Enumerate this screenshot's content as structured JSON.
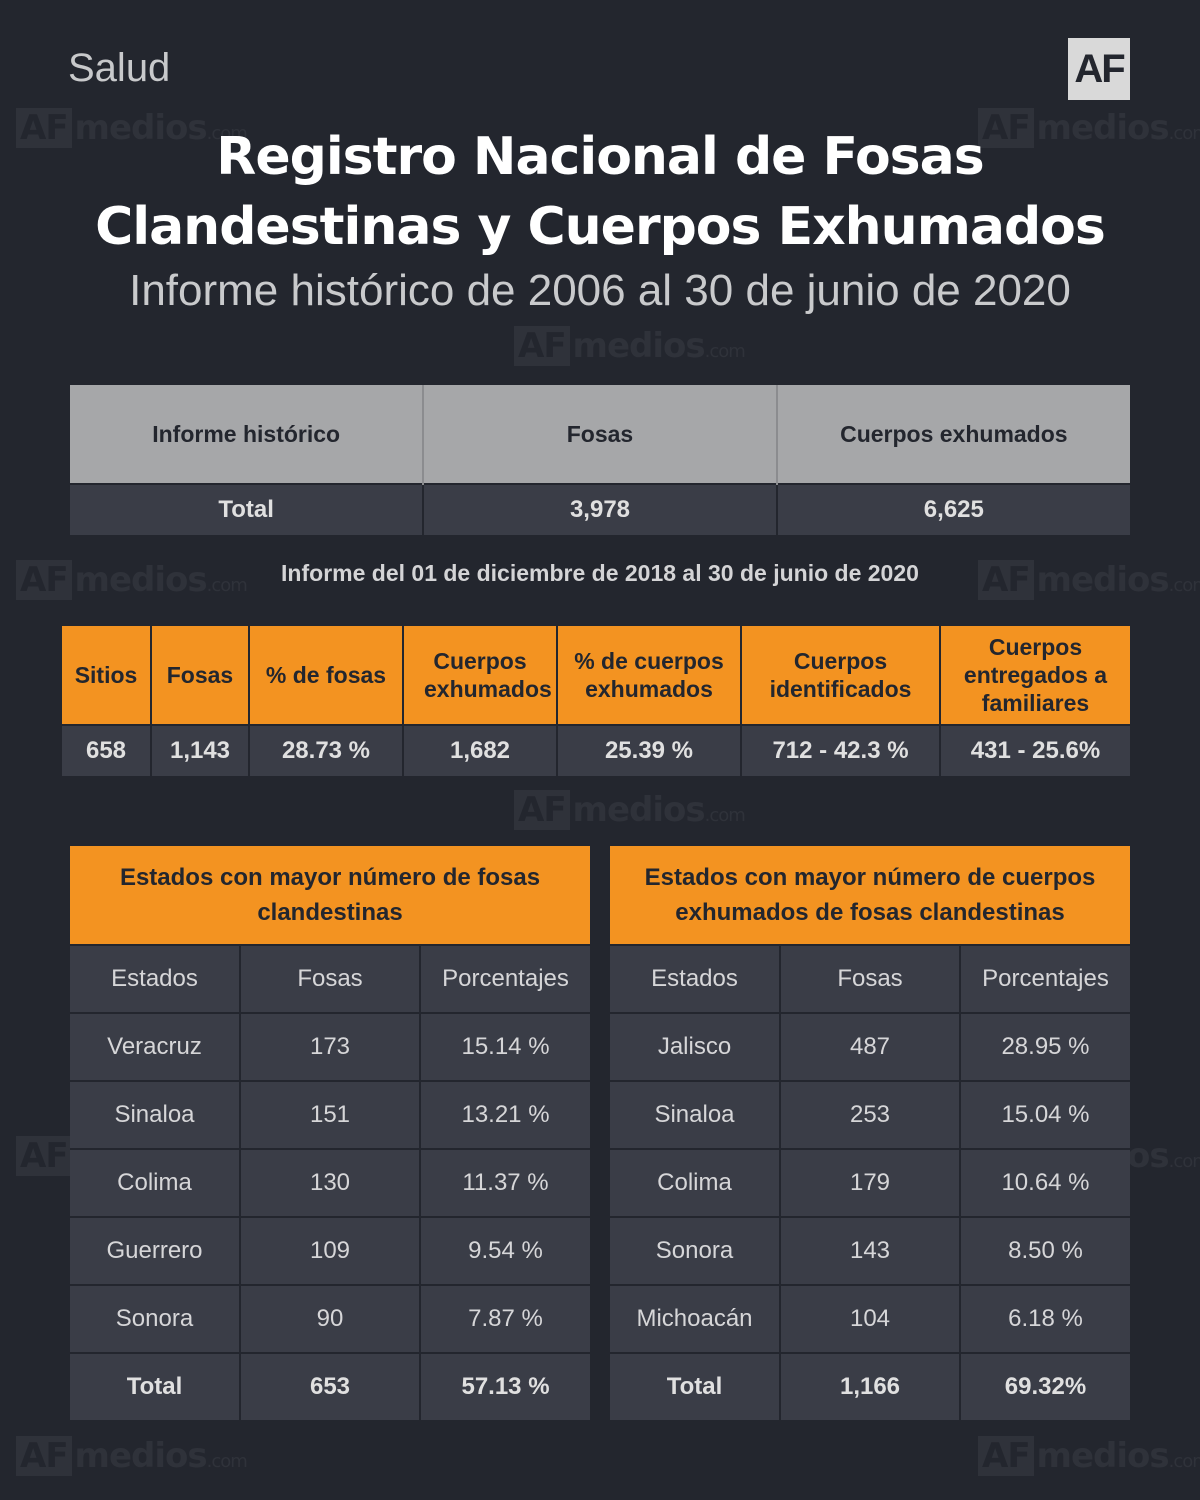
{
  "section": "Salud",
  "logo": "AF",
  "watermark": {
    "brand": "AF",
    "text": "medios",
    "suffix": ".com"
  },
  "title_line1": "Registro Nacional de Fosas",
  "title_line2": "Clandestinas y Cuerpos Exhumados",
  "subtitle": "Informe histórico de 2006 al 30 de junio de 2020",
  "historic": {
    "headers": [
      "Informe histórico",
      "Fosas",
      "Cuerpos exhumados"
    ],
    "row": [
      "Total",
      "3,978",
      "6,625"
    ]
  },
  "period_label": "Informe del 01 de diciembre de 2018 al 30 de junio de 2020",
  "period": {
    "headers": [
      "Sitios",
      "Fosas",
      "% de fosas",
      "Cuerpos exhumados",
      "% de cuerpos exhumados",
      "Cuerpos identificados",
      "Cuerpos entregados a familiares"
    ],
    "row": [
      "658",
      "1,143",
      "28.73 %",
      "1,682",
      "25.39 %",
      "712 - 42.3 %",
      "431 - 25.6%"
    ]
  },
  "fosas_table": {
    "caption": "Estados con mayor número de fosas clandestinas",
    "headers": [
      "Estados",
      "Fosas",
      "Porcentajes"
    ],
    "rows": [
      [
        "Veracruz",
        "173",
        "15.14 %"
      ],
      [
        "Sinaloa",
        "151",
        "13.21 %"
      ],
      [
        "Colima",
        "130",
        "11.37 %"
      ],
      [
        "Guerrero",
        "109",
        "9.54 %"
      ],
      [
        "Sonora",
        "90",
        "7.87 %"
      ],
      [
        "Total",
        "653",
        "57.13 %"
      ]
    ]
  },
  "cuerpos_table": {
    "caption": "Estados con mayor número de cuerpos exhumados de fosas clandestinas",
    "headers": [
      "Estados",
      "Fosas",
      "Porcentajes"
    ],
    "rows": [
      [
        "Jalisco",
        "487",
        "28.95 %"
      ],
      [
        "Sinaloa",
        "253",
        "15.04 %"
      ],
      [
        "Colima",
        "179",
        "10.64 %"
      ],
      [
        "Sonora",
        "143",
        "8.50 %"
      ],
      [
        "Michoacán",
        "104",
        "6.18 %"
      ],
      [
        "Total",
        "1,166",
        "69.32%"
      ]
    ]
  }
}
